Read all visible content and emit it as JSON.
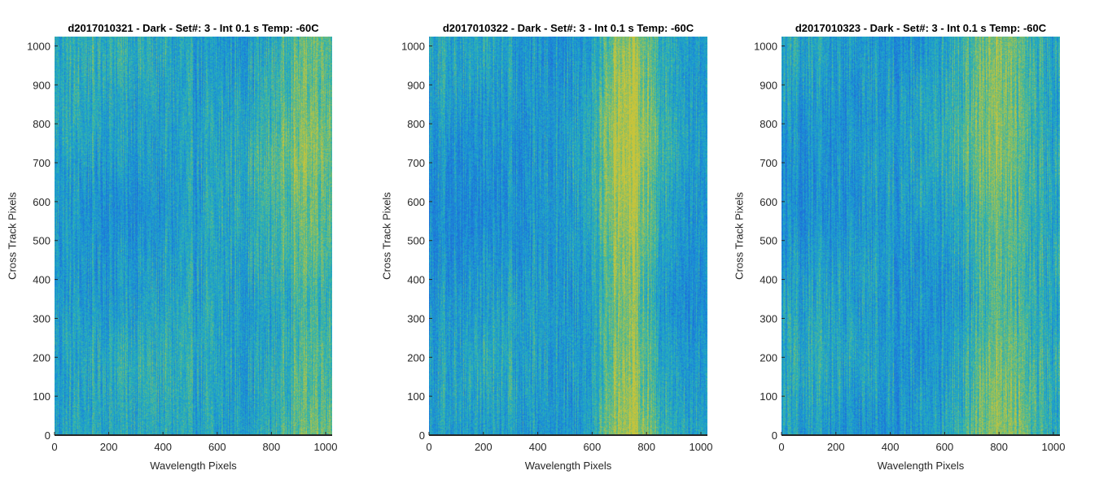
{
  "chart_data": [
    {
      "type": "heatmap",
      "title": "d2017010321 - Dark - Set#: 3 - Int 0.1 s Temp: -60C",
      "xlabel": "Wavelength Pixels",
      "ylabel": "Cross Track Pixels",
      "xlim": [
        0,
        1024
      ],
      "ylim": [
        0,
        1024
      ],
      "xticks": [
        0,
        200,
        400,
        600,
        800,
        1000
      ],
      "yticks": [
        0,
        100,
        200,
        300,
        400,
        500,
        600,
        700,
        800,
        900,
        1000
      ],
      "colormap": [
        "#1f6fd8",
        "#1a95d6",
        "#2cb3b2",
        "#7bbd6e",
        "#c9c43a"
      ],
      "bright_band_center_x": 950,
      "bright_band_width_x": 150,
      "bright_band_strength": 0.35,
      "base_level": 0.35
    },
    {
      "type": "heatmap",
      "title": "d2017010322 - Dark - Set#: 3 - Int 0.1 s Temp: -60C",
      "xlabel": "Wavelength Pixels",
      "ylabel": "Cross Track Pixels",
      "xlim": [
        0,
        1024
      ],
      "ylim": [
        0,
        1024
      ],
      "xticks": [
        0,
        200,
        400,
        600,
        800,
        1000
      ],
      "yticks": [
        0,
        100,
        200,
        300,
        400,
        500,
        600,
        700,
        800,
        900,
        1000
      ],
      "colormap": [
        "#1f6fd8",
        "#1a95d6",
        "#2cb3b2",
        "#7bbd6e",
        "#c9c43a"
      ],
      "bright_band_center_x": 730,
      "bright_band_width_x": 110,
      "bright_band_strength": 0.6,
      "base_level": 0.3
    },
    {
      "type": "heatmap",
      "title": "d2017010323 - Dark - Set#: 3 - Int 0.1 s Temp: -60C",
      "xlabel": "Wavelength Pixels",
      "ylabel": "Cross Track Pixels",
      "xlim": [
        0,
        1024
      ],
      "ylim": [
        0,
        1024
      ],
      "xticks": [
        0,
        200,
        400,
        600,
        800,
        1000
      ],
      "yticks": [
        0,
        100,
        200,
        300,
        400,
        500,
        600,
        700,
        800,
        900,
        1000
      ],
      "colormap": [
        "#1f6fd8",
        "#1a95d6",
        "#2cb3b2",
        "#7bbd6e",
        "#c9c43a"
      ],
      "bright_band_center_x": 800,
      "bright_band_width_x": 150,
      "bright_band_strength": 0.4,
      "base_level": 0.3
    }
  ]
}
